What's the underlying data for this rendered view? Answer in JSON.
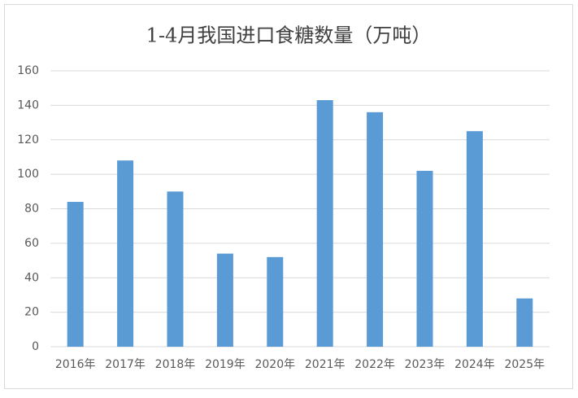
{
  "chart_data": {
    "type": "bar",
    "title": "1-4月我国进口食糖数量（万吨）",
    "categories": [
      "2016年",
      "2017年",
      "2018年",
      "2019年",
      "2020年",
      "2021年",
      "2022年",
      "2023年",
      "2024年",
      "2025年"
    ],
    "values": [
      84,
      108,
      90,
      54,
      52,
      143,
      136,
      102,
      125,
      28
    ],
    "color": "#5b9bd5",
    "ylim": [
      0,
      160
    ],
    "yticks": [
      0,
      20,
      40,
      60,
      80,
      100,
      120,
      140,
      160
    ],
    "grid": true
  }
}
